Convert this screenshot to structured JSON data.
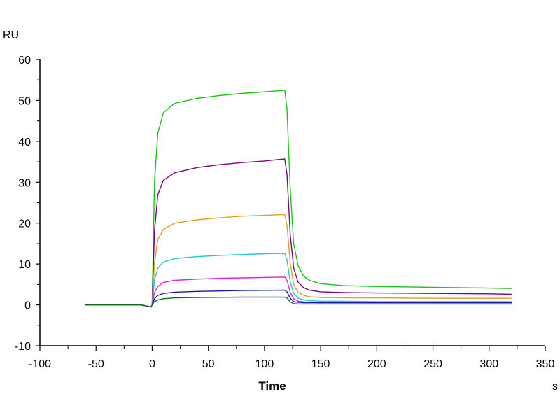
{
  "chart_data": {
    "type": "line",
    "title": "",
    "xlabel": "Time",
    "xunit": "s",
    "ylabel": "RU",
    "xlim": [
      -100,
      350
    ],
    "ylim": [
      -10,
      60
    ],
    "x_ticks": [
      -100,
      -50,
      0,
      50,
      100,
      150,
      200,
      250,
      300,
      350
    ],
    "y_ticks": [
      -10,
      0,
      10,
      20,
      30,
      40,
      50,
      60
    ],
    "grid": false,
    "legend": "none",
    "series": [
      {
        "color": "#19c419",
        "x": [
          -60,
          -10,
          -1,
          0,
          2,
          5,
          10,
          20,
          40,
          60,
          80,
          100,
          118,
          120,
          123,
          126,
          130,
          135,
          140,
          150,
          170,
          200,
          250,
          300,
          320
        ],
        "y": [
          0,
          0,
          -0.5,
          0,
          30,
          42,
          47,
          49.3,
          50.5,
          51.2,
          51.7,
          52.1,
          52.5,
          48,
          28,
          15,
          9.5,
          7,
          6,
          5.2,
          4.7,
          4.5,
          4.3,
          4.1,
          4.0
        ]
      },
      {
        "color": "#800080",
        "x": [
          -60,
          -10,
          -1,
          0,
          2,
          5,
          10,
          20,
          40,
          60,
          80,
          100,
          118,
          120,
          123,
          126,
          130,
          135,
          140,
          150,
          170,
          200,
          250,
          300,
          320
        ],
        "y": [
          0,
          0,
          -0.5,
          0,
          18,
          27,
          30.5,
          32.3,
          33.6,
          34.3,
          34.8,
          35.2,
          35.7,
          32,
          17,
          9,
          5.5,
          4.2,
          3.6,
          3.2,
          3.0,
          2.9,
          2.8,
          2.7,
          2.6
        ]
      },
      {
        "color": "#e0a020",
        "x": [
          -60,
          -10,
          -1,
          0,
          2,
          5,
          10,
          20,
          40,
          60,
          80,
          100,
          118,
          120,
          123,
          126,
          130,
          135,
          140,
          150,
          170,
          200,
          250,
          300,
          320
        ],
        "y": [
          0,
          0,
          -0.5,
          0,
          10,
          16,
          18.5,
          20,
          20.8,
          21.3,
          21.7,
          21.9,
          22.1,
          19.5,
          10,
          5,
          3,
          2.3,
          2.0,
          1.8,
          1.7,
          1.7,
          1.6,
          1.6,
          1.6
        ]
      },
      {
        "color": "#20c8c8",
        "x": [
          -60,
          -10,
          -1,
          0,
          2,
          5,
          10,
          20,
          40,
          60,
          80,
          100,
          118,
          120,
          123,
          126,
          130,
          135,
          140,
          150,
          170,
          200,
          250,
          300,
          320
        ],
        "y": [
          0,
          0,
          -0.5,
          0,
          6,
          9,
          10.5,
          11.3,
          11.8,
          12.1,
          12.3,
          12.5,
          12.6,
          11,
          5.5,
          2.8,
          1.6,
          1.2,
          1.0,
          0.9,
          0.9,
          0.8,
          0.8,
          0.8,
          0.8
        ]
      },
      {
        "color": "#e020e0",
        "x": [
          -60,
          -10,
          -1,
          0,
          2,
          5,
          10,
          20,
          40,
          60,
          80,
          100,
          118,
          120,
          123,
          126,
          130,
          135,
          140,
          150,
          170,
          200,
          250,
          300,
          320
        ],
        "y": [
          0,
          0,
          -0.5,
          0,
          3,
          4.5,
          5.5,
          6.0,
          6.3,
          6.5,
          6.6,
          6.7,
          6.8,
          6.0,
          3.0,
          1.5,
          0.9,
          0.7,
          0.6,
          0.5,
          0.5,
          0.5,
          0.5,
          0.5,
          0.5
        ]
      },
      {
        "color": "#1a1aa8",
        "x": [
          -60,
          -10,
          -1,
          0,
          2,
          5,
          10,
          20,
          40,
          60,
          80,
          100,
          118,
          120,
          123,
          126,
          130,
          135,
          140,
          150,
          170,
          200,
          250,
          300,
          320
        ],
        "y": [
          0,
          0,
          -0.5,
          0,
          1.5,
          2.3,
          2.8,
          3.1,
          3.3,
          3.4,
          3.5,
          3.55,
          3.6,
          3.2,
          1.6,
          0.8,
          0.6,
          0.5,
          0.5,
          0.5,
          0.5,
          0.5,
          0.5,
          0.5,
          0.5
        ]
      },
      {
        "color": "#1a6a1a",
        "x": [
          -60,
          -10,
          -1,
          0,
          2,
          5,
          10,
          20,
          40,
          60,
          80,
          100,
          118,
          120,
          123,
          126,
          130,
          135,
          140,
          150,
          170,
          200,
          250,
          300,
          320
        ],
        "y": [
          0,
          0,
          -0.5,
          0,
          0.8,
          1.2,
          1.5,
          1.7,
          1.8,
          1.85,
          1.9,
          1.9,
          1.9,
          1.7,
          0.7,
          0.3,
          0.2,
          0.2,
          0.2,
          0.2,
          0.2,
          0.2,
          0.2,
          0.2,
          0.2
        ]
      }
    ]
  }
}
